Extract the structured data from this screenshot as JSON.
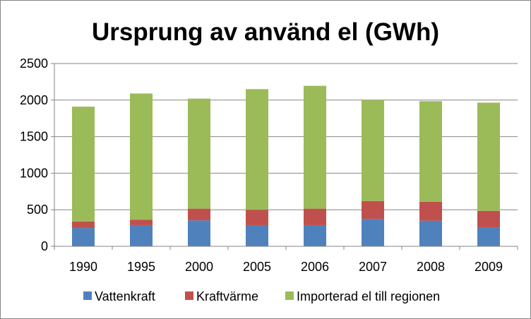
{
  "chart_data": {
    "type": "bar",
    "stacked": true,
    "title": "Ursprung av använd el (GWh)",
    "xlabel": "",
    "ylabel": "",
    "categories": [
      "1990",
      "1995",
      "2000",
      "2005",
      "2006",
      "2007",
      "2008",
      "2009"
    ],
    "series": [
      {
        "name": "Vattenkraft",
        "color": "#4F81BD",
        "values": [
          250,
          290,
          355,
          290,
          290,
          375,
          350,
          260
        ]
      },
      {
        "name": "Kraftvärme",
        "color": "#C0504D",
        "values": [
          90,
          75,
          160,
          210,
          225,
          245,
          260,
          225
        ]
      },
      {
        "name": "Importerad el till regionen",
        "color": "#9BBB59",
        "values": [
          1570,
          1725,
          1505,
          1650,
          1680,
          1380,
          1375,
          1480
        ]
      }
    ],
    "ylim": [
      0,
      2500
    ],
    "yticks": [
      "0",
      "500",
      "1000",
      "1500",
      "2000",
      "2500"
    ],
    "grid": true,
    "legend_position": "bottom"
  }
}
